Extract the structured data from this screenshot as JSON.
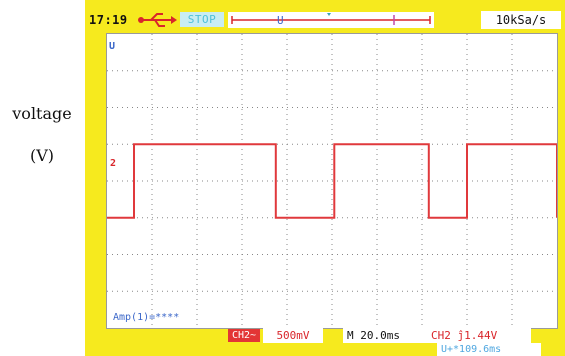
{
  "axis_label": {
    "line1": "voltage",
    "line2": "(V)"
  },
  "status": {
    "time": "17:19",
    "run_state": "STOP",
    "sample_rate": "10kSa/s"
  },
  "screen": {
    "amp_label": "Amp(1)=****",
    "trigger_marker": "U",
    "channel_marker": "2"
  },
  "bottom": {
    "channel_badge": "CH2~",
    "volts_per_div": "500mV",
    "time_per_div": "M 20.0ms",
    "trigger_info": "CH2 ĵ1.44V",
    "delay_info": "U+*109.6ms"
  },
  "colors": {
    "frame": "#f6ea1e",
    "trace": "#e0393c",
    "grid": "#888888",
    "accent_blue": "#3b67c9",
    "accent_cyan": "#4fc0d8"
  },
  "trace_data": {
    "units": "V",
    "volts_per_div": 0.5,
    "time_per_div_ms": 20,
    "low_level_div": -1,
    "high_level_div": 1,
    "transitions_div": [
      0.6,
      3.75,
      5.05,
      7.15,
      8.0,
      10.1,
      11.0
    ]
  }
}
